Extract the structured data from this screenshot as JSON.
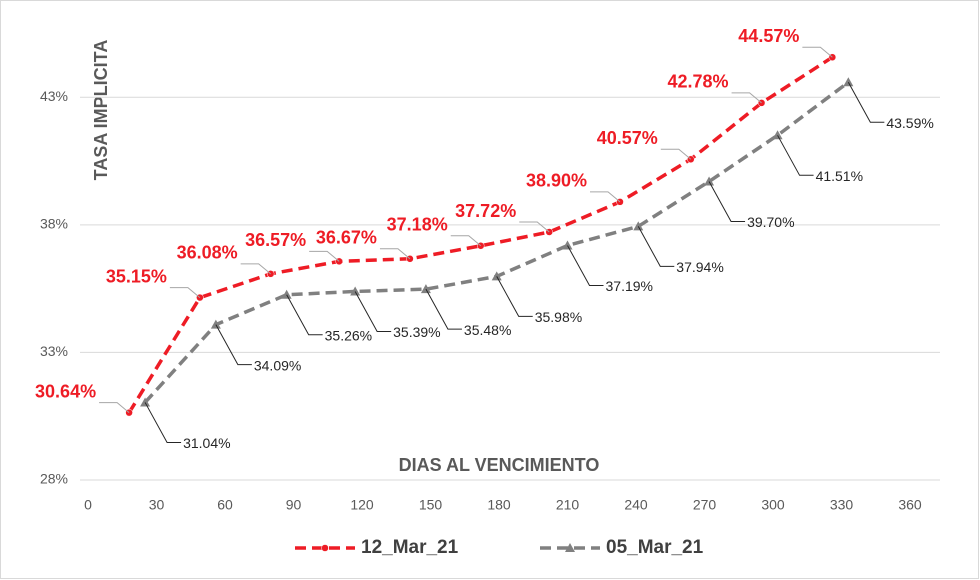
{
  "chart_data": {
    "type": "line",
    "x_label": "DIAS AL VENCIMIENTO",
    "y_label": "TASA IMPLICITA",
    "xlim": [
      0,
      360
    ],
    "xticks": [
      0,
      30,
      60,
      90,
      120,
      150,
      180,
      210,
      240,
      270,
      300,
      330,
      360
    ],
    "ylim": [
      28,
      46.5
    ],
    "yticks": [
      {
        "value": 28,
        "label": "28%"
      },
      {
        "value": 33,
        "label": "33%"
      },
      {
        "value": 38,
        "label": "38%"
      },
      {
        "value": 43,
        "label": "43%"
      }
    ],
    "grid": true,
    "legend": "bottom",
    "series": [
      {
        "name": "12_Mar_21",
        "color": "#ee1c25",
        "x": [
          18,
          49,
          80,
          110,
          141,
          172,
          202,
          233,
          264,
          295,
          326
        ],
        "values": [
          30.64,
          35.15,
          36.08,
          36.57,
          36.67,
          37.18,
          37.72,
          38.9,
          40.57,
          42.78,
          44.57
        ],
        "value_labels": [
          "30.64%",
          "35.15%",
          "36.08%",
          "36.57%",
          "36.67%",
          "37.18%",
          "37.72%",
          "38.90%",
          "40.57%",
          "42.78%",
          "44.57%"
        ]
      },
      {
        "name": "05_Mar_21",
        "color": "#808080",
        "x": [
          25,
          56,
          87,
          117,
          148,
          179,
          210,
          241,
          272,
          302,
          333
        ],
        "values": [
          31.04,
          34.09,
          35.26,
          35.39,
          35.48,
          35.98,
          37.19,
          37.94,
          39.7,
          41.51,
          43.59
        ],
        "value_labels": [
          "31.04%",
          "34.09%",
          "35.26%",
          "35.39%",
          "35.48%",
          "35.98%",
          "37.19%",
          "37.94%",
          "39.70%",
          "41.51%",
          "43.59%"
        ]
      }
    ]
  }
}
